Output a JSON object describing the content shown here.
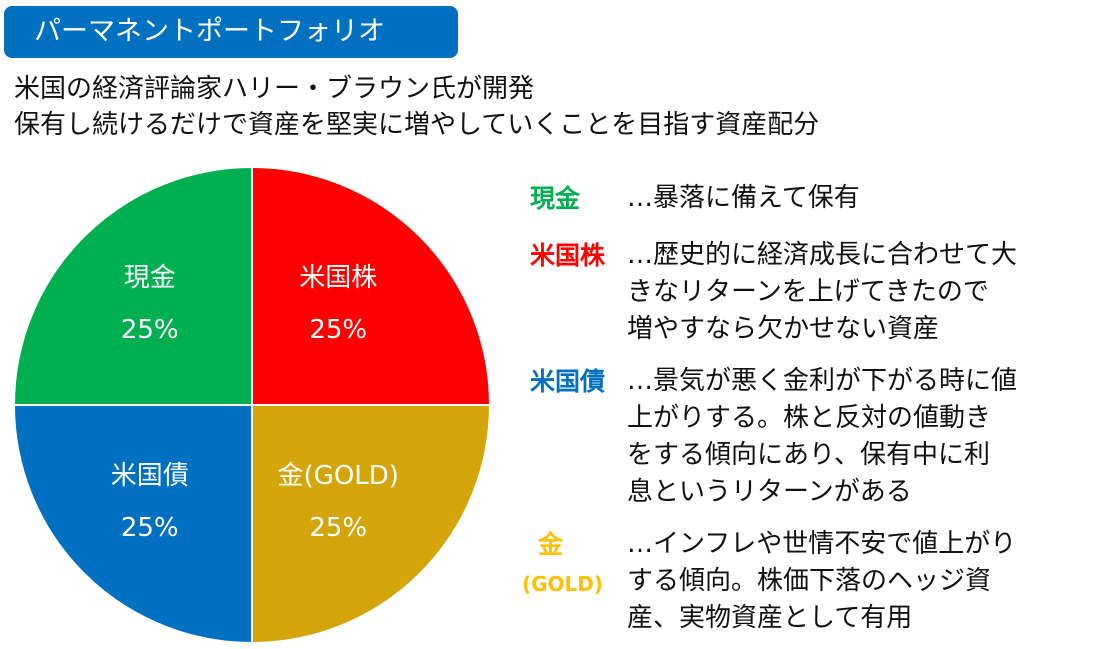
{
  "header": {
    "title": "パーマネントポートフォリオ",
    "subtitle_lines": [
      "米国の経済評論家ハリー・ブラウン氏が開発",
      "保有し続けるだけで資産を堅実に増やしていくことを目指す資産配分"
    ]
  },
  "chart_data": {
    "type": "pie",
    "title": "パーマネントポートフォリオ",
    "start": "top",
    "direction": "clockwise",
    "slices": [
      {
        "label": "米国株",
        "value": 25,
        "value_label": "25%",
        "color": "#ff0000"
      },
      {
        "label": "金(GOLD)",
        "value": 25,
        "value_label": "25%",
        "color": "#d4a50a"
      },
      {
        "label": "米国債",
        "value": 25,
        "value_label": "25%",
        "color": "#0070c0"
      },
      {
        "label": "現金",
        "value": 25,
        "value_label": "25%",
        "color": "#00b050"
      }
    ]
  },
  "legend": [
    {
      "name": "現金",
      "color": "#00b050",
      "lines": [
        "…暴落に備えて保有"
      ]
    },
    {
      "name": "米国株",
      "color": "#ff0000",
      "lines": [
        "…歴史的に経済成長に合わせて大",
        "きなリターンを上げてきたので",
        "増やすなら欠かせない資産"
      ]
    },
    {
      "name": "米国債",
      "color": "#0070c0",
      "lines": [
        "…景気が悪く金利が下がる時に値",
        "上がりする。株と反対の値動き",
        "をする傾向にあり、保有中に利",
        "息というリターンがある"
      ]
    },
    {
      "name": "金",
      "name_sub": "(GOLD)",
      "color": "#ffc000",
      "lines": [
        "…インフレや世情不安で値上がり",
        "する傾向。株価下落のヘッジ資",
        "産、実物資産として有用"
      ]
    }
  ]
}
